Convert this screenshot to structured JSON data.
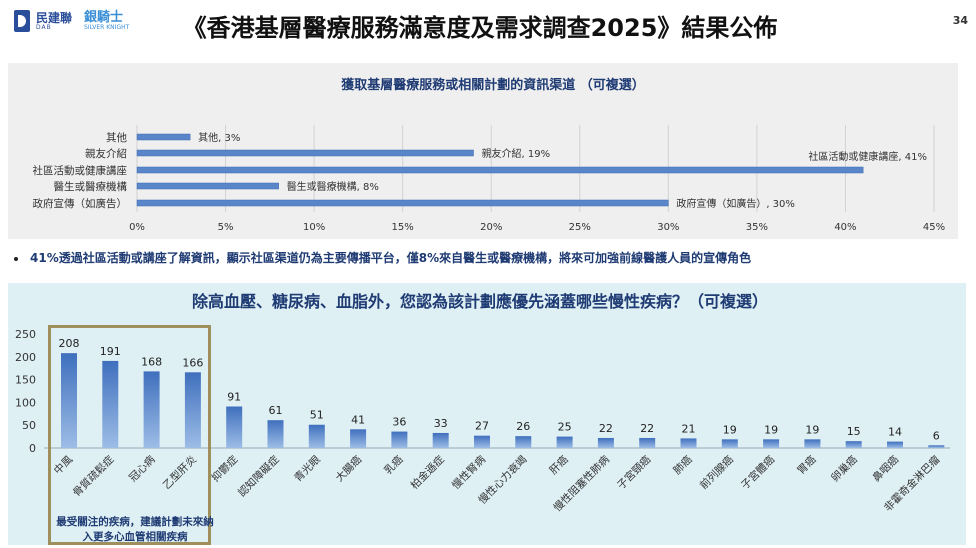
{
  "header": {
    "logo1_text": "民建聯",
    "logo1_sub": "DAB",
    "logo2_text": "銀騎士",
    "logo2_sub": "SILVER KNIGHT",
    "title": "《香港基層醫療服務滿意度及需求調查2025》結果公佈",
    "page_number": "34"
  },
  "note": "41%透過社區活動或講座了解資訊，顯示社區渠道仍為主要傳播平台，僅8%來自醫生或醫療機構，將來可加強前線醫護人員的宣傳角色",
  "callout": "最受關注的疾病，建議計劃未來納入更多心血管相關疾病",
  "colors": {
    "bar": "#4a78c1",
    "bar_light": "#8fb3e3",
    "panel1_bg": "#efefef",
    "panel2_bg": "#dff0f5",
    "callout_border": "#9e8f5c"
  },
  "chart_data": [
    {
      "type": "bar",
      "orientation": "horizontal",
      "title": "獲取基層醫療服務或相關計劃的資訊渠道 （可複選）",
      "categories": [
        "其他",
        "親友介紹",
        "社區活動或健康講座",
        "醫生或醫療機構",
        "政府宣傳（如廣告）"
      ],
      "values": [
        3,
        19,
        41,
        8,
        30
      ],
      "data_labels": [
        "其他, 3%",
        "親友介紹, 19%",
        "社區活動或健康講座, 41%",
        "醫生或醫療機構, 8%",
        "政府宣傳（如廣告）, 30%"
      ],
      "unit": "%",
      "xlim": [
        0,
        45
      ],
      "xticks": [
        0,
        5,
        10,
        15,
        20,
        25,
        30,
        35,
        40,
        45
      ],
      "xtick_labels": [
        "0%",
        "5%",
        "10%",
        "15%",
        "20%",
        "25%",
        "30%",
        "35%",
        "40%",
        "45%"
      ],
      "grid": true
    },
    {
      "type": "bar",
      "orientation": "vertical",
      "title": "除高血壓、糖尿病、血脂外，您認為該計劃應優先涵蓋哪些慢性疾病？（可複選）",
      "categories": [
        "中風",
        "骨質疏鬆症",
        "冠心病",
        "乙型肝炎",
        "抑鬱症",
        "認知障礙症",
        "青光眼",
        "大腸癌",
        "乳癌",
        "柏金遜症",
        "慢性腎病",
        "慢性心力衰竭",
        "肝癌",
        "慢性阻塞性肺病",
        "子宮頸癌",
        "肺癌",
        "前列腺癌",
        "子宮體癌",
        "胃癌",
        "卵巢癌",
        "鼻咽癌",
        "非霍奇金淋巴瘤"
      ],
      "values": [
        208,
        191,
        168,
        166,
        91,
        61,
        51,
        41,
        36,
        33,
        27,
        26,
        25,
        22,
        22,
        21,
        19,
        19,
        19,
        15,
        14,
        6
      ],
      "ylim": [
        0,
        250
      ],
      "yticks": [
        0,
        50,
        100,
        150,
        200,
        250
      ],
      "grid": false
    }
  ]
}
